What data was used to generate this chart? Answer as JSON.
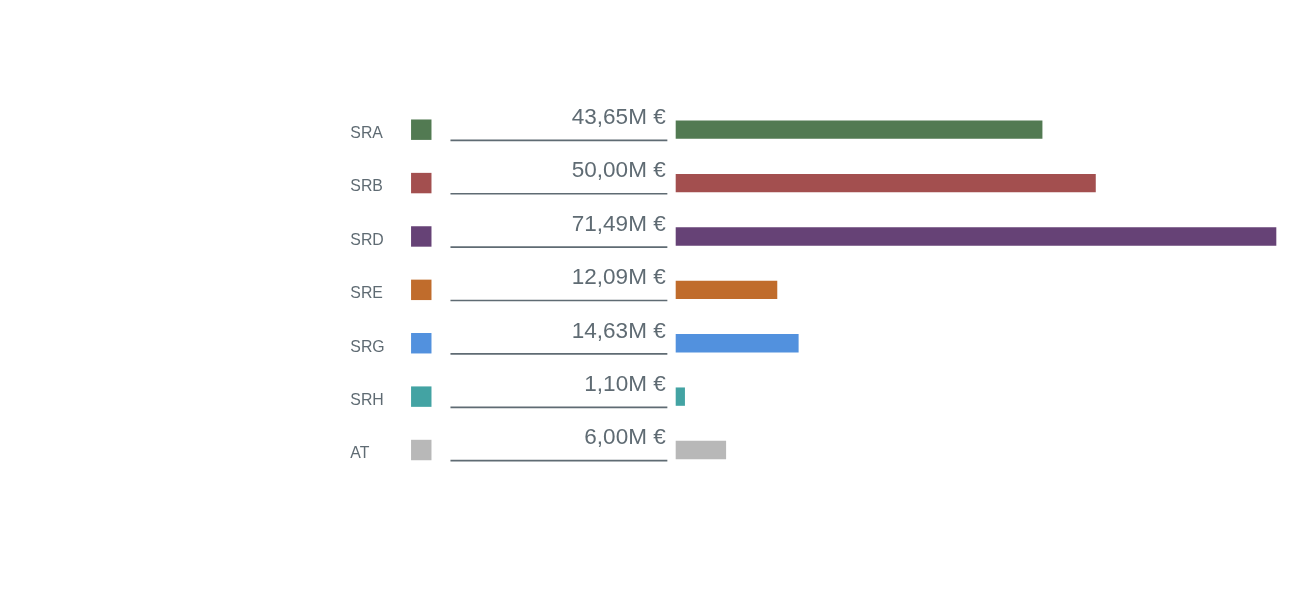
{
  "chart_data": {
    "type": "bar",
    "orientation": "horizontal",
    "relative": false,
    "categories": [
      "SRA",
      "SRB",
      "SRD",
      "SRE",
      "SRG",
      "SRH",
      "AT"
    ],
    "values": [
      43.65,
      50.0,
      71.49,
      12.09,
      14.63,
      1.1,
      6.0
    ],
    "colors": [
      "#527a52",
      "#a34f4f",
      "#664276",
      "#c06c2c",
      "#5291de",
      "#43a3a3",
      "#b8b8b8"
    ],
    "value_labels": [
      "43,65M €",
      "50,00M €",
      "71,49M €",
      "12,09M €",
      "14,63M €",
      "1,10M €",
      "6,00M €"
    ]
  }
}
